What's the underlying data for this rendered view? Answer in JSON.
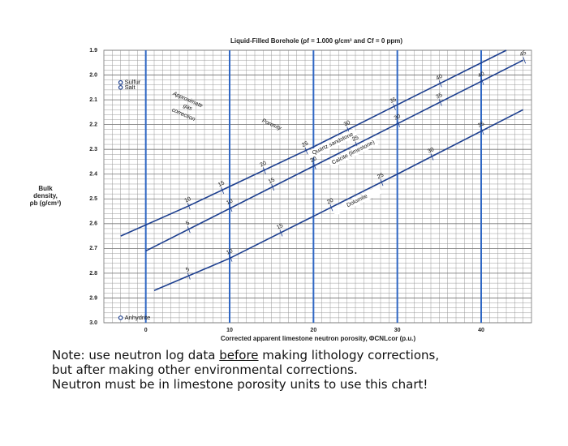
{
  "chart_data": {
    "type": "line",
    "title": "Liquid-Filled Borehole (ρf = 1.000 g/cm³ and Cf = 0 ppm)",
    "xlabel": "Corrected apparent limestone neutron porosity, ΦCNLcor (p.u.)",
    "ylabel": [
      "Bulk",
      "density,",
      "ρb (g/cm³)"
    ],
    "xlim": [
      -5,
      46
    ],
    "xticks": [
      0,
      10,
      20,
      30,
      40
    ],
    "ylim": [
      3.0,
      1.9
    ],
    "yticks": [
      1.9,
      {
        "value": 2,
        "label": "2.0"
      },
      2.1,
      2.2,
      2.3,
      2.4,
      2.5,
      2.6,
      2.7,
      2.8,
      2.9,
      {
        "value": 3,
        "label": "3.0"
      }
    ],
    "grid": true,
    "series": [
      {
        "name": "Quartz sandstone",
        "color": "#1d3f8f",
        "x": [
          -3,
          5,
          10,
          20,
          30,
          43
        ],
        "y": [
          2.65,
          2.53,
          2.45,
          2.29,
          2.12,
          1.9
        ],
        "porosity_labels": [
          {
            "value": 10,
            "x": 5
          },
          {
            "value": 15,
            "x": 9
          },
          {
            "value": 20,
            "x": 14
          },
          {
            "value": 25,
            "x": 19
          },
          {
            "value": 30,
            "x": 24
          },
          {
            "value": 35,
            "x": 29.5
          },
          {
            "value": 40,
            "x": 35
          }
        ]
      },
      {
        "name": "Calcite (limestone)",
        "color": "#1d3f8f",
        "x": [
          0,
          45
        ],
        "y": [
          2.71,
          1.94
        ],
        "porosity_labels": [
          {
            "value": 5,
            "x": 5
          },
          {
            "value": 10,
            "x": 10
          },
          {
            "value": 15,
            "x": 15
          },
          {
            "value": 20,
            "x": 20
          },
          {
            "value": 25,
            "x": 25
          },
          {
            "value": 30,
            "x": 30
          },
          {
            "value": 35,
            "x": 35
          },
          {
            "value": 40,
            "x": 40
          },
          {
            "value": 45,
            "x": 45
          }
        ]
      },
      {
        "name": "Dolomite",
        "color": "#1d3f8f",
        "x": [
          1,
          10,
          20,
          30,
          45
        ],
        "y": [
          2.87,
          2.74,
          2.57,
          2.4,
          2.14
        ],
        "porosity_labels": [
          {
            "value": 5,
            "x": 5
          },
          {
            "value": 10,
            "x": 10
          },
          {
            "value": 15,
            "x": 16
          },
          {
            "value": 20,
            "x": 22
          },
          {
            "value": 25,
            "x": 28
          },
          {
            "value": 30,
            "x": 34
          },
          {
            "value": 35,
            "x": 40
          }
        ]
      }
    ],
    "points": [
      {
        "name": "Sulfur",
        "x": -3,
        "y": 2.03
      },
      {
        "name": "Salt",
        "x": -3,
        "y": 2.05
      },
      {
        "name": "Anhydrite",
        "x": -3,
        "y": 2.98
      }
    ],
    "annotations": [
      {
        "text": "Porosity",
        "x": 15,
        "y": 2.2
      },
      {
        "text": "Approximate",
        "x": 5,
        "y": 2.1
      },
      {
        "text": "gas",
        "x": 5,
        "y": 2.13
      },
      {
        "text": "correction",
        "x": 4.5,
        "y": 2.16
      }
    ]
  },
  "note": {
    "line1_a": "Note: use neutron log data ",
    "line1_b": "before",
    "line1_c": " making lithology corrections,",
    "line2": "but after making other environmental corrections.",
    "line3": "Neutron must  be in limestone porosity units to use this chart!"
  }
}
